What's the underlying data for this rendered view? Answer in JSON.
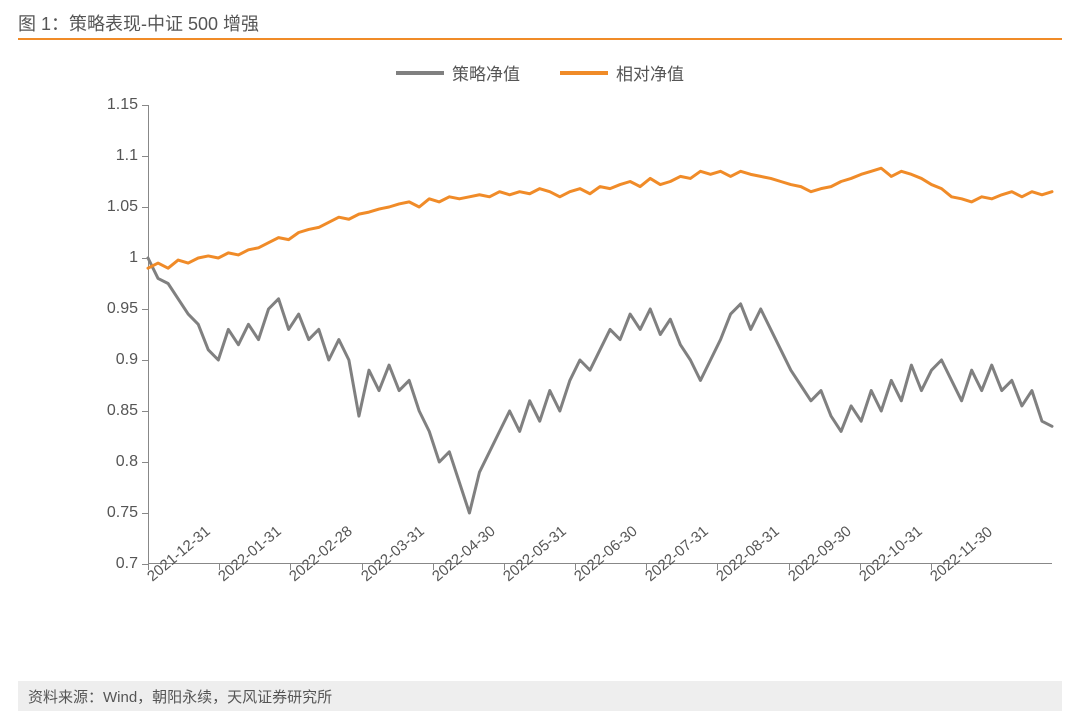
{
  "title": "图 1：策略表现-中证 500 增强",
  "footer": "资料来源：Wind，朝阳永续，天风证券研究所",
  "chart": {
    "type": "line",
    "background_color": "#ffffff",
    "title_underline_color": "#f08b28",
    "axis_color": "#888888",
    "tick_font_color": "#555555",
    "tick_fontsize": 16,
    "ylim": [
      0.7,
      1.15
    ],
    "ytick_step": 0.05,
    "yticks": [
      0.7,
      0.75,
      0.8,
      0.85,
      0.9,
      0.95,
      1,
      1.05,
      1.1,
      1.15
    ],
    "xticks": [
      "2021-12-31",
      "2022-01-31",
      "2022-02-28",
      "2022-03-31",
      "2022-04-30",
      "2022-05-31",
      "2022-06-30",
      "2022-07-31",
      "2022-08-31",
      "2022-09-30",
      "2022-10-31",
      "2022-11-30"
    ],
    "x_label_rotation_deg": -40,
    "legend": {
      "position": "top-center",
      "items": [
        {
          "label": "策略净值",
          "color": "#808080"
        },
        {
          "label": "相对净值",
          "color": "#f08b28"
        }
      ]
    },
    "line_width": 3,
    "series": [
      {
        "name": "策略净值",
        "color": "#808080",
        "data": [
          1.0,
          0.98,
          0.975,
          0.96,
          0.945,
          0.935,
          0.91,
          0.9,
          0.93,
          0.915,
          0.935,
          0.92,
          0.95,
          0.96,
          0.93,
          0.945,
          0.92,
          0.93,
          0.9,
          0.92,
          0.9,
          0.845,
          0.89,
          0.87,
          0.895,
          0.87,
          0.88,
          0.85,
          0.83,
          0.8,
          0.81,
          0.78,
          0.75,
          0.79,
          0.81,
          0.83,
          0.85,
          0.83,
          0.86,
          0.84,
          0.87,
          0.85,
          0.88,
          0.9,
          0.89,
          0.91,
          0.93,
          0.92,
          0.945,
          0.93,
          0.95,
          0.925,
          0.94,
          0.915,
          0.9,
          0.88,
          0.9,
          0.92,
          0.945,
          0.955,
          0.93,
          0.95,
          0.93,
          0.91,
          0.89,
          0.875,
          0.86,
          0.87,
          0.845,
          0.83,
          0.855,
          0.84,
          0.87,
          0.85,
          0.88,
          0.86,
          0.895,
          0.87,
          0.89,
          0.9,
          0.88,
          0.86,
          0.89,
          0.87,
          0.895,
          0.87,
          0.88,
          0.855,
          0.87,
          0.84,
          0.835
        ]
      },
      {
        "name": "相对净值",
        "color": "#f08b28",
        "data": [
          0.99,
          0.995,
          0.99,
          0.998,
          0.995,
          1.0,
          1.002,
          1.0,
          1.005,
          1.003,
          1.008,
          1.01,
          1.015,
          1.02,
          1.018,
          1.025,
          1.028,
          1.03,
          1.035,
          1.04,
          1.038,
          1.043,
          1.045,
          1.048,
          1.05,
          1.053,
          1.055,
          1.05,
          1.058,
          1.055,
          1.06,
          1.058,
          1.06,
          1.062,
          1.06,
          1.065,
          1.062,
          1.065,
          1.063,
          1.068,
          1.065,
          1.06,
          1.065,
          1.068,
          1.063,
          1.07,
          1.068,
          1.072,
          1.075,
          1.07,
          1.078,
          1.072,
          1.075,
          1.08,
          1.078,
          1.085,
          1.082,
          1.085,
          1.08,
          1.085,
          1.082,
          1.08,
          1.078,
          1.075,
          1.072,
          1.07,
          1.065,
          1.068,
          1.07,
          1.075,
          1.078,
          1.082,
          1.085,
          1.088,
          1.08,
          1.085,
          1.082,
          1.078,
          1.072,
          1.068,
          1.06,
          1.058,
          1.055,
          1.06,
          1.058,
          1.062,
          1.065,
          1.06,
          1.065,
          1.062,
          1.065
        ]
      }
    ]
  }
}
